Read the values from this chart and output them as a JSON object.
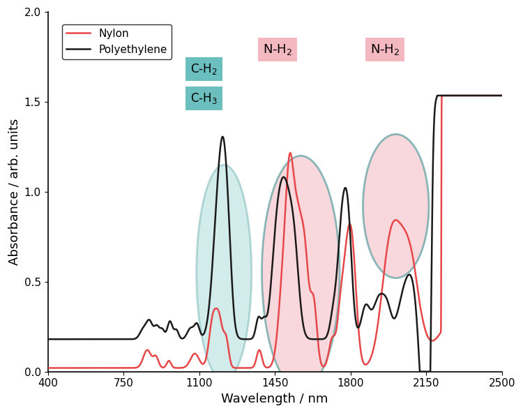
{
  "title": "",
  "xlabel": "Wavelength / nm",
  "ylabel": "Absorbance / arb. units",
  "xlim": [
    400,
    2500
  ],
  "ylim": [
    0.0,
    2.0
  ],
  "xticks": [
    400,
    750,
    1100,
    1450,
    1800,
    2150,
    2500
  ],
  "yticks": [
    0.0,
    0.5,
    1.0,
    1.5,
    2.0
  ],
  "nylon_color": "#e8474a",
  "pe_color": "#1a1a1a",
  "legend_entries": [
    "Nylon",
    "Polyethylene"
  ],
  "ellipse_ch_color": "#6bbfbf",
  "ellipse_ch_alpha": 0.3,
  "ellipse_ch_edge": "#2d8a8a",
  "ellipse_nh_color": "#f4b8c0",
  "ellipse_nh_alpha": 0.55,
  "ellipse_nh_edge": "#2d8a8a",
  "label_box_ch_color": "#6bbfbf",
  "label_box_nh_color": "#f4b8c0",
  "background_color": "#ffffff"
}
